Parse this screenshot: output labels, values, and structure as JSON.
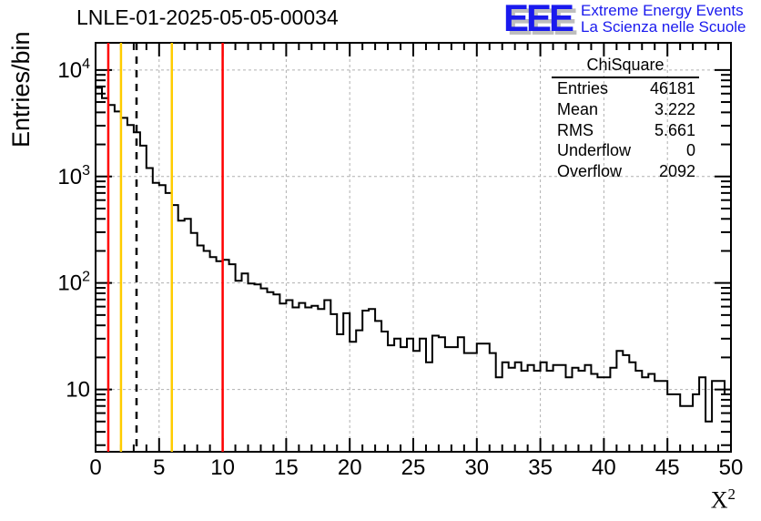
{
  "header": {
    "title": "LNLE-01-2025-05-05-00034"
  },
  "logo": {
    "acronym": "EEE",
    "line1": "Extreme Energy Events",
    "line2": "La Scienza nelle Scuole",
    "color": "#1a1aee",
    "shadow_color": "#bdbdbd"
  },
  "stats": {
    "title": "ChiSquare",
    "rows": [
      {
        "label": "Entries",
        "value": "46181"
      },
      {
        "label": "Mean",
        "value": "3.222"
      },
      {
        "label": "RMS",
        "value": "5.661"
      },
      {
        "label": "Underflow",
        "value": "0"
      },
      {
        "label": "Overflow",
        "value": "2092"
      }
    ]
  },
  "chart_data": {
    "type": "bar",
    "subtype": "step-histogram",
    "title": "LNLE-01-2025-05-05-00034",
    "xlabel": "X^2",
    "xlabel_base": "X",
    "xlabel_sup": "2",
    "ylabel": "Entries/bin",
    "x_min": 0,
    "x_max": 50,
    "bin_width": 0.5,
    "y_scale": "log",
    "y_min": 2.6,
    "y_max": 18000,
    "x_major_ticks": [
      0,
      5,
      10,
      15,
      20,
      25,
      30,
      35,
      40,
      45,
      50
    ],
    "y_major_ticks": [
      10,
      100,
      1000,
      10000
    ],
    "grid": true,
    "grid_style": "dashed",
    "grid_color": "#b0b0b0",
    "line_color": "#000000",
    "values": [
      6800,
      5450,
      4700,
      4080,
      3550,
      3040,
      2600,
      1950,
      1200,
      870,
      830,
      700,
      540,
      385,
      400,
      295,
      225,
      200,
      175,
      160,
      165,
      150,
      105,
      123,
      99,
      97,
      89,
      82,
      78,
      64,
      69,
      59,
      65,
      59,
      61,
      57,
      69,
      51,
      33,
      52,
      28,
      36,
      55,
      57,
      44,
      35,
      26,
      30,
      25,
      30,
      23,
      30,
      18,
      32,
      31,
      25,
      25,
      31,
      22,
      22,
      27,
      27,
      22,
      13,
      18,
      16,
      18,
      15,
      17,
      15,
      18,
      15,
      17,
      17,
      13,
      16,
      15,
      17,
      14,
      13,
      13,
      16,
      23,
      21,
      18,
      15,
      13,
      14,
      12,
      12,
      9,
      9,
      7,
      7,
      9,
      13,
      5,
      12,
      12,
      9
    ],
    "marker_lines": [
      {
        "x": 1,
        "color": "#ff0000",
        "style": "solid"
      },
      {
        "x": 2,
        "color": "#ffcc00",
        "style": "solid"
      },
      {
        "x": 3.222,
        "color": "#000000",
        "style": "dashed"
      },
      {
        "x": 6,
        "color": "#ffcc00",
        "style": "solid"
      },
      {
        "x": 10,
        "color": "#ff0000",
        "style": "solid"
      }
    ]
  }
}
